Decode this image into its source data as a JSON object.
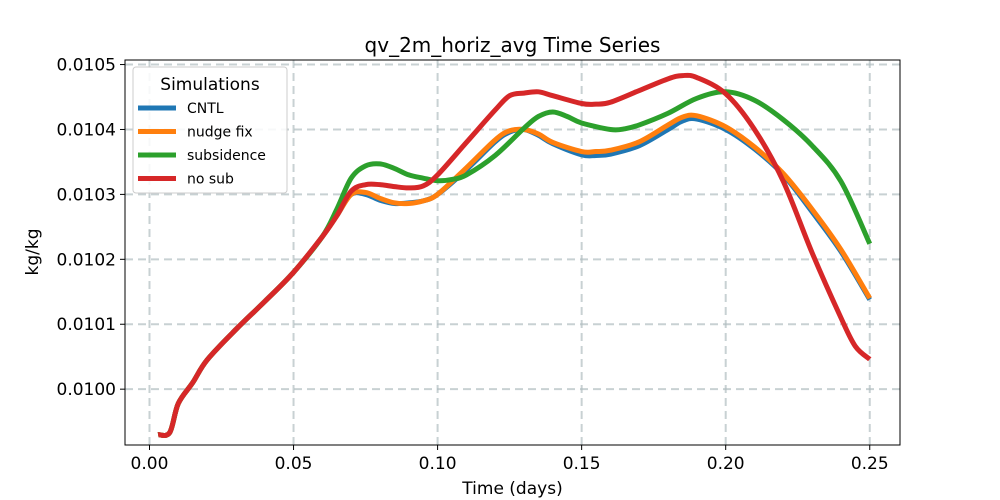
{
  "chart_data": {
    "type": "line",
    "title": "qv_2m_horiz_avg Time Series",
    "xlabel": "Time (days)",
    "ylabel": "kg/kg",
    "xlim": [
      -0.0085,
      0.2605
    ],
    "ylim": [
      0.009914,
      0.010507
    ],
    "xticks": [
      0.0,
      0.05,
      0.1,
      0.15,
      0.2,
      0.25
    ],
    "xtick_labels": [
      "0.00",
      "0.05",
      "0.10",
      "0.15",
      "0.20",
      "0.25"
    ],
    "yticks": [
      0.01,
      0.0101,
      0.0102,
      0.0103,
      0.0104,
      0.0105
    ],
    "ytick_labels": [
      "0.0100",
      "0.0101",
      "0.0102",
      "0.0103",
      "0.0104",
      "0.0105"
    ],
    "grid": true,
    "legend": {
      "title": "Simulations",
      "placement": "top-left"
    },
    "series": [
      {
        "name": "CNTL",
        "color": "#1f77b4",
        "x": [
          0.003,
          0.007,
          0.01,
          0.015,
          0.02,
          0.03,
          0.04,
          0.05,
          0.06,
          0.065,
          0.07,
          0.075,
          0.08,
          0.085,
          0.09,
          0.095,
          0.1,
          0.11,
          0.12,
          0.125,
          0.13,
          0.135,
          0.14,
          0.15,
          0.155,
          0.16,
          0.17,
          0.18,
          0.185,
          0.19,
          0.2,
          0.21,
          0.22,
          0.23,
          0.24,
          0.25
        ],
        "y": [
          0.00993,
          0.009933,
          0.009978,
          0.01001,
          0.010045,
          0.010092,
          0.010135,
          0.01018,
          0.010235,
          0.010267,
          0.0103,
          0.0103,
          0.010291,
          0.010286,
          0.010287,
          0.01029,
          0.0103,
          0.010338,
          0.010381,
          0.010396,
          0.0104,
          0.010391,
          0.010378,
          0.010361,
          0.01036,
          0.010362,
          0.010375,
          0.0104,
          0.010413,
          0.010416,
          0.0104,
          0.01037,
          0.01033,
          0.010273,
          0.010212,
          0.010138
        ]
      },
      {
        "name": "nudge fix",
        "color": "#ff7f0e",
        "x": [
          0.003,
          0.007,
          0.01,
          0.015,
          0.02,
          0.03,
          0.04,
          0.05,
          0.06,
          0.065,
          0.07,
          0.075,
          0.08,
          0.085,
          0.09,
          0.095,
          0.1,
          0.11,
          0.12,
          0.125,
          0.13,
          0.135,
          0.14,
          0.15,
          0.155,
          0.16,
          0.17,
          0.18,
          0.185,
          0.19,
          0.2,
          0.21,
          0.22,
          0.23,
          0.24,
          0.25
        ],
        "y": [
          0.00993,
          0.009933,
          0.009978,
          0.01001,
          0.010045,
          0.010092,
          0.010135,
          0.01018,
          0.010235,
          0.010267,
          0.0103,
          0.010303,
          0.010294,
          0.010287,
          0.010286,
          0.01029,
          0.0103,
          0.010341,
          0.010384,
          0.010398,
          0.0104,
          0.010393,
          0.01038,
          0.010366,
          0.010366,
          0.010368,
          0.010381,
          0.010407,
          0.010419,
          0.010421,
          0.010404,
          0.010373,
          0.010332,
          0.010277,
          0.010215,
          0.01014
        ]
      },
      {
        "name": "subsidence",
        "color": "#2ca02c",
        "x": [
          0.003,
          0.007,
          0.01,
          0.015,
          0.02,
          0.03,
          0.04,
          0.05,
          0.06,
          0.065,
          0.07,
          0.075,
          0.08,
          0.085,
          0.09,
          0.095,
          0.1,
          0.105,
          0.11,
          0.12,
          0.13,
          0.135,
          0.14,
          0.145,
          0.15,
          0.16,
          0.165,
          0.17,
          0.18,
          0.19,
          0.2,
          0.21,
          0.22,
          0.23,
          0.24,
          0.25
        ],
        "y": [
          0.00993,
          0.009933,
          0.009978,
          0.01001,
          0.010045,
          0.010092,
          0.010135,
          0.01018,
          0.010235,
          0.010277,
          0.010325,
          0.010344,
          0.010347,
          0.01034,
          0.01033,
          0.010325,
          0.010321,
          0.010323,
          0.01033,
          0.01036,
          0.010402,
          0.01042,
          0.010427,
          0.01042,
          0.01041,
          0.0104,
          0.010401,
          0.010407,
          0.010425,
          0.010448,
          0.010458,
          0.010445,
          0.010415,
          0.010375,
          0.01032,
          0.010224
        ]
      },
      {
        "name": "no sub",
        "color": "#d62728",
        "x": [
          0.003,
          0.007,
          0.01,
          0.015,
          0.02,
          0.03,
          0.04,
          0.05,
          0.06,
          0.065,
          0.07,
          0.075,
          0.08,
          0.085,
          0.09,
          0.095,
          0.1,
          0.11,
          0.12,
          0.125,
          0.13,
          0.135,
          0.14,
          0.15,
          0.155,
          0.16,
          0.17,
          0.18,
          0.185,
          0.19,
          0.2,
          0.21,
          0.22,
          0.23,
          0.24,
          0.245,
          0.25
        ],
        "y": [
          0.00993,
          0.009933,
          0.009978,
          0.01001,
          0.010045,
          0.010092,
          0.010135,
          0.01018,
          0.010235,
          0.010267,
          0.010305,
          0.010315,
          0.010315,
          0.010312,
          0.01031,
          0.010313,
          0.01033,
          0.01038,
          0.01043,
          0.010452,
          0.010456,
          0.010458,
          0.010452,
          0.01044,
          0.010439,
          0.010442,
          0.01046,
          0.010478,
          0.010483,
          0.01048,
          0.010455,
          0.0104,
          0.01032,
          0.01021,
          0.01011,
          0.010066,
          0.010046
        ]
      }
    ]
  }
}
